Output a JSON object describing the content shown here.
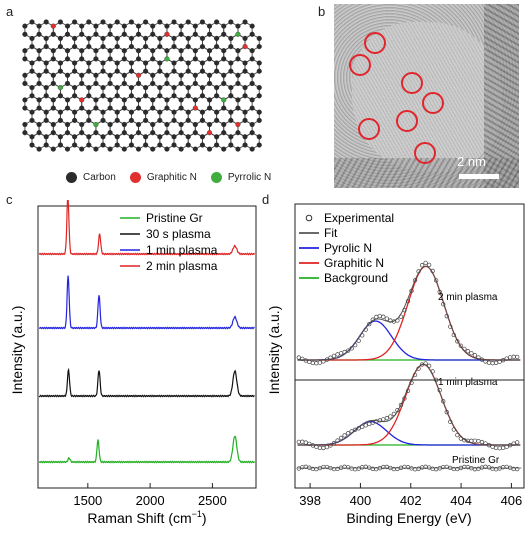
{
  "panels": {
    "a": {
      "letter": "a",
      "legend": [
        {
          "label": "Carbon",
          "color": "#2b2b2b"
        },
        {
          "label": "Graphitic N",
          "color": "#e03030"
        },
        {
          "label": "Pyrrolic N",
          "color": "#3fae3f"
        }
      ]
    },
    "b": {
      "letter": "b",
      "scale_label": "2 nm",
      "highlight_color": "#e0262d"
    },
    "c": {
      "letter": "c"
    },
    "d": {
      "letter": "d"
    }
  },
  "chart_data": [
    {
      "type": "line",
      "panel": "c",
      "xlabel": "Raman Shift (cm",
      "xlabel_sup": "−1",
      "xlabel_end": ")",
      "ylabel": "Intensity (a.u.)",
      "xlim": [
        1100,
        2850
      ],
      "xticks": [
        "1500",
        "2000",
        "2500"
      ],
      "xtick_values": [
        1500,
        2000,
        2500
      ],
      "legend_position": "top-right",
      "series": [
        {
          "name": "Pristine Gr",
          "color": "#22b022",
          "offset": 0,
          "peaks": [
            [
              1350,
              0.2
            ],
            [
              1582,
              1.1
            ],
            [
              2680,
              1.3
            ]
          ]
        },
        {
          "name": "30 s plasma",
          "color": "#111111",
          "offset": 1,
          "peaks": [
            [
              1345,
              1.3
            ],
            [
              1590,
              1.3
            ],
            [
              2680,
              1.25
            ]
          ]
        },
        {
          "name": "1 min plasma",
          "color": "#2323e0",
          "offset": 2,
          "peaks": [
            [
              1342,
              2.6
            ],
            [
              1590,
              1.65
            ],
            [
              2680,
              0.55
            ]
          ]
        },
        {
          "name": "2 min plasma",
          "color": "#e02323",
          "offset": 3,
          "peaks": [
            [
              1340,
              2.85
            ],
            [
              1595,
              1.0
            ],
            [
              2680,
              0.4
            ]
          ]
        }
      ]
    },
    {
      "type": "line",
      "panel": "d",
      "xlabel": "Binding Energy (eV)",
      "ylabel": "Intensity (a.u.)",
      "xlim": [
        397.4,
        406.5
      ],
      "xticks": [
        "398",
        "400",
        "402",
        "404",
        "406"
      ],
      "xtick_values": [
        398,
        400,
        402,
        404,
        406
      ],
      "legend_position": "top-left",
      "legend": [
        {
          "label": "Experimental",
          "style": "marker"
        },
        {
          "label": "Fit",
          "color": "#555555"
        },
        {
          "label": "Pyrolic N",
          "color": "#2323e0"
        },
        {
          "label": "Graphitic N",
          "color": "#e02323"
        },
        {
          "label": "Background",
          "color": "#22b022"
        }
      ],
      "spectra": [
        {
          "label": "2 min plasma",
          "pyrrolic_center": 400.6,
          "pyrrolic_height": 0.3,
          "graphitic_center": 402.6,
          "graphitic_height": 0.72
        },
        {
          "label": "1 min plasma",
          "pyrrolic_center": 400.4,
          "pyrrolic_height": 0.18,
          "graphitic_center": 402.5,
          "graphitic_height": 0.62
        },
        {
          "label": "Pristine Gr"
        }
      ]
    }
  ]
}
